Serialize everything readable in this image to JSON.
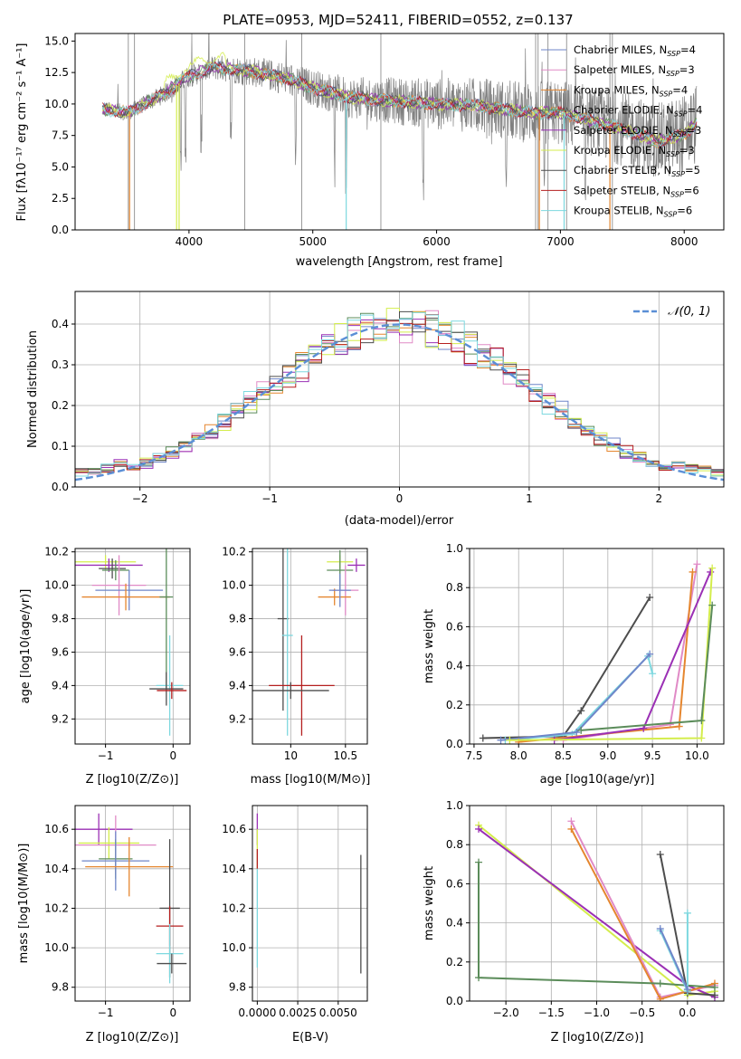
{
  "chart_data": [
    {
      "id": "spectrum",
      "type": "line",
      "title": "PLATE=0953, MJD=52411, FIBERID=0552, z=0.137",
      "xlabel": "wavelength [Angstrom, rest frame]",
      "ylabel": "Flux [fλ10⁻¹⁷ erg cm⁻² s⁻¹ A⁻¹]",
      "xlim": [
        3080,
        8320
      ],
      "ylim": [
        0,
        15.6
      ],
      "xticks": [
        "4000",
        "5000",
        "6000",
        "7000",
        "8000"
      ],
      "yticks": [
        "0.0",
        "2.5",
        "5.0",
        "7.5",
        "10.0",
        "12.5",
        "15.0"
      ],
      "continuum": {
        "x": [
          3300,
          3500,
          3800,
          4000,
          4200,
          4500,
          4800,
          5000,
          5300,
          5600,
          6000,
          6300,
          6600,
          6800,
          7000,
          7200,
          7500,
          7800,
          8000,
          8100
        ],
        "y": [
          9.6,
          9.3,
          10.8,
          12.2,
          12.9,
          12.6,
          12.0,
          11.3,
          10.5,
          10.3,
          10.0,
          9.9,
          9.5,
          9.3,
          9.3,
          8.8,
          8.0,
          7.0,
          7.6,
          8.5
        ]
      },
      "observed_range": [
        3300,
        8100
      ],
      "series_names": [
        "Chabrier MILES, N_SSP=4",
        "Salpeter MILES, N_SSP=3",
        "Kroupa MILES, N_SSP=4",
        "Chabrier ELODIE, N_SSP=4",
        "Salpeter ELODIE, N_SSP=3",
        "Kroupa ELODIE, N_SSP=3",
        "Chabrier STELIB, N_SSP=5",
        "Salpeter STELIB, N_SSP=6",
        "Kroupa STELIB, N_SSP=6"
      ],
      "legend": {
        "placement": "top-right",
        "entries": [
          {
            "base": "Chabrier MILES, N",
            "sub": "SSP",
            "tail": "=4",
            "color": "#6f86c9"
          },
          {
            "base": "Salpeter MILES, N",
            "sub": "SSP",
            "tail": "=3",
            "color": "#e08ac6"
          },
          {
            "base": "Kroupa MILES, N",
            "sub": "SSP",
            "tail": "=4",
            "color": "#e5862f"
          },
          {
            "base": "Chabrier ELODIE, N",
            "sub": "SSP",
            "tail": "=4",
            "color": "#5b8c5a"
          },
          {
            "base": "Salpeter ELODIE, N",
            "sub": "SSP",
            "tail": "=3",
            "color": "#9b30b5"
          },
          {
            "base": "Kroupa ELODIE, N",
            "sub": "SSP",
            "tail": "=3",
            "color": "#d4ed4c"
          },
          {
            "base": "Chabrier STELIB, N",
            "sub": "SSP",
            "tail": "=5",
            "color": "#4d4d4d"
          },
          {
            "base": "Salpeter STELIB, N",
            "sub": "SSP",
            "tail": "=6",
            "color": "#b51f1f"
          },
          {
            "base": "Kroupa STELIB, N",
            "sub": "SSP",
            "tail": "=6",
            "color": "#7dd8df"
          }
        ]
      },
      "grid": false
    },
    {
      "id": "residuals",
      "type": "histogram",
      "xlabel": "(data-model)/error",
      "ylabel": "Normed distribution",
      "xlim": [
        -2.5,
        2.5
      ],
      "ylim": [
        0,
        0.48
      ],
      "xticks": [
        "−2",
        "−1",
        "0",
        "1",
        "2"
      ],
      "yticks": [
        "0.0",
        "0.1",
        "0.2",
        "0.3",
        "0.4"
      ],
      "legend_label": "𝒩(0, 1)",
      "legend_placement": "top-right",
      "bin_width": 0.1,
      "grid": true
    },
    {
      "id": "age-vs-Z",
      "type": "errorbar",
      "xlabel": "Z [log10(Z/Z⊙)]",
      "ylabel": "age  [log10(age/yr)]",
      "xlim": [
        -1.45,
        0.25
      ],
      "ylim": [
        9.05,
        10.22
      ],
      "xticks": [
        -1,
        0
      ],
      "yticks": [
        9.2,
        9.4,
        9.6,
        9.8,
        10.0,
        10.2
      ],
      "grid": true,
      "points": [
        {
          "x": -1.0,
          "y": 10.14,
          "xerr": 0.45,
          "yerr": 0.04,
          "color": "#d4ed4c"
        },
        {
          "x": -0.95,
          "y": 10.12,
          "xerr": 0.5,
          "yerr": 0.04,
          "color": "#9b30b5"
        },
        {
          "x": -0.9,
          "y": 10.1,
          "xerr": 0.2,
          "yerr": 0.06,
          "color": "#4d4d4d"
        },
        {
          "x": -0.85,
          "y": 10.09,
          "xerr": 0.2,
          "yerr": 0.06,
          "color": "#5b8c5a"
        },
        {
          "x": -0.8,
          "y": 10.0,
          "xerr": 0.4,
          "yerr": 0.18,
          "color": "#e08ac6"
        },
        {
          "x": -0.65,
          "y": 9.97,
          "xerr": 0.5,
          "yerr": 0.12,
          "color": "#6f86c9"
        },
        {
          "x": -0.7,
          "y": 9.93,
          "xerr": 0.65,
          "yerr": 0.08,
          "color": "#e5862f"
        },
        {
          "x": -0.1,
          "y": 9.93,
          "xerr": 0.1,
          "yerr": 0.55,
          "color": "#5b8c5a"
        },
        {
          "x": -0.05,
          "y": 9.4,
          "xerr": 0.2,
          "yerr": 0.3,
          "color": "#7dd8df"
        },
        {
          "x": -0.1,
          "y": 9.38,
          "xerr": 0.25,
          "yerr": 0.1,
          "color": "#4d4d4d"
        },
        {
          "x": -0.02,
          "y": 9.37,
          "xerr": 0.22,
          "yerr": 0.05,
          "color": "#b51f1f"
        }
      ]
    },
    {
      "id": "age-vs-mass",
      "type": "errorbar",
      "xlabel": "mass [log10(M/M⊙)]",
      "ylabel": "",
      "xlim": [
        9.65,
        10.7
      ],
      "ylim": [
        9.05,
        10.22
      ],
      "xticks": [
        10.0,
        10.5
      ],
      "yticks": [
        9.2,
        9.4,
        9.6,
        9.8,
        10.0,
        10.2
      ],
      "grid": true,
      "points": [
        {
          "x": 10.45,
          "y": 10.14,
          "xerr": 0.12,
          "yerr": 0.04,
          "color": "#d4ed4c"
        },
        {
          "x": 10.6,
          "y": 10.12,
          "xerr": 0.08,
          "yerr": 0.04,
          "color": "#9b30b5"
        },
        {
          "x": 10.45,
          "y": 10.09,
          "xerr": 0.12,
          "yerr": 0.12,
          "color": "#5b8c5a"
        },
        {
          "x": 10.5,
          "y": 9.97,
          "xerr": 0.12,
          "yerr": 0.15,
          "color": "#e08ac6"
        },
        {
          "x": 10.4,
          "y": 9.93,
          "xerr": 0.15,
          "yerr": 0.05,
          "color": "#e5862f"
        },
        {
          "x": 10.45,
          "y": 9.97,
          "xerr": 0.1,
          "yerr": 0.1,
          "color": "#6f86c9"
        },
        {
          "x": 9.93,
          "y": 9.8,
          "xerr": 0.05,
          "yerr": 0.55,
          "color": "#4d4d4d"
        },
        {
          "x": 9.97,
          "y": 9.7,
          "xerr": 0.05,
          "yerr": 0.6,
          "color": "#7dd8df"
        },
        {
          "x": 10.1,
          "y": 9.4,
          "xerr": 0.3,
          "yerr": 0.3,
          "color": "#b51f1f"
        },
        {
          "x": 10.0,
          "y": 9.37,
          "xerr": 0.35,
          "yerr": 0.05,
          "color": "#4d4d4d"
        }
      ]
    },
    {
      "id": "weight-vs-age",
      "type": "line",
      "xlabel": "age  [log10(age/yr)]",
      "ylabel": "mass weight",
      "xlim": [
        7.45,
        10.3
      ],
      "ylim": [
        0,
        1.0
      ],
      "xticks": [
        "7.5",
        "8.0",
        "8.5",
        "9.0",
        "9.5",
        "10.0"
      ],
      "yticks": [
        "0.0",
        "0.2",
        "0.4",
        "0.6",
        "0.8",
        "1.0"
      ],
      "grid": true,
      "series": [
        {
          "color": "#4d4d4d",
          "x": [
            7.6,
            8.5,
            8.7,
            9.47
          ],
          "y": [
            0.03,
            0.04,
            0.17,
            0.75
          ]
        },
        {
          "color": "#7dd8df",
          "x": [
            7.85,
            8.6,
            9.45,
            9.5
          ],
          "y": [
            0.02,
            0.05,
            0.45,
            0.36
          ]
        },
        {
          "color": "#6f86c9",
          "x": [
            7.8,
            8.65,
            9.47
          ],
          "y": [
            0.02,
            0.06,
            0.46
          ]
        },
        {
          "color": "#e08ac6",
          "x": [
            8.5,
            9.7,
            10.0
          ],
          "y": [
            0.02,
            0.1,
            0.92
          ]
        },
        {
          "color": "#e5862f",
          "x": [
            8.0,
            9.8,
            9.95
          ],
          "y": [
            0.01,
            0.09,
            0.88
          ]
        },
        {
          "color": "#9b30b5",
          "x": [
            8.4,
            9.4,
            10.15
          ],
          "y": [
            0.02,
            0.08,
            0.88
          ]
        },
        {
          "color": "#d4ed4c",
          "x": [
            7.9,
            10.05,
            10.17
          ],
          "y": [
            0.02,
            0.03,
            0.9
          ]
        },
        {
          "color": "#5b8c5a",
          "x": [
            8.7,
            10.05,
            10.17
          ],
          "y": [
            0.07,
            0.12,
            0.71
          ]
        }
      ]
    },
    {
      "id": "mass-vs-Z",
      "type": "errorbar",
      "xlabel": "Z [log10(Z/Z⊙)]",
      "ylabel": "mass [log10(M/M⊙)]",
      "xlim": [
        -1.45,
        0.25
      ],
      "ylim": [
        9.73,
        10.72
      ],
      "xticks": [
        -1,
        0
      ],
      "yticks": [
        9.8,
        10.0,
        10.2,
        10.4,
        10.6
      ],
      "grid": true,
      "points": [
        {
          "x": -1.1,
          "y": 10.6,
          "xerr": 0.5,
          "yerr": 0.08,
          "color": "#9b30b5"
        },
        {
          "x": -0.95,
          "y": 10.53,
          "xerr": 0.45,
          "yerr": 0.08,
          "color": "#d4ed4c"
        },
        {
          "x": -0.85,
          "y": 10.52,
          "xerr": 0.6,
          "yerr": 0.15,
          "color": "#e08ac6"
        },
        {
          "x": -0.85,
          "y": 10.45,
          "xerr": 0.25,
          "yerr": 0.1,
          "color": "#5b8c5a"
        },
        {
          "x": -0.85,
          "y": 10.44,
          "xerr": 0.5,
          "yerr": 0.15,
          "color": "#6f86c9"
        },
        {
          "x": -0.65,
          "y": 10.41,
          "xerr": 0.65,
          "yerr": 0.15,
          "color": "#e5862f"
        },
        {
          "x": -0.05,
          "y": 10.2,
          "xerr": 0.15,
          "yerr": 0.35,
          "color": "#4d4d4d"
        },
        {
          "x": -0.05,
          "y": 10.11,
          "xerr": 0.2,
          "yerr": 0.1,
          "color": "#b51f1f"
        },
        {
          "x": -0.05,
          "y": 9.97,
          "xerr": 0.2,
          "yerr": 0.15,
          "color": "#7dd8df"
        },
        {
          "x": -0.02,
          "y": 9.92,
          "xerr": 0.22,
          "yerr": 0.05,
          "color": "#4d4d4d"
        }
      ]
    },
    {
      "id": "mass-vs-ebv",
      "type": "errorbar",
      "xlabel": "E(B-V)",
      "ylabel": "",
      "xlim": [
        -0.0003,
        0.0068
      ],
      "ylim": [
        9.73,
        10.72
      ],
      "xticks": [
        "0.0000",
        "0.0025",
        "0.0050"
      ],
      "yticks": [
        9.8,
        10.0,
        10.2,
        10.4,
        10.6
      ],
      "grid": true,
      "points": [
        {
          "x": 0.0,
          "y": 10.6,
          "xerr": 0,
          "yerr": 0.08,
          "color": "#9b30b5"
        },
        {
          "x": 0.0,
          "y": 10.5,
          "xerr": 0,
          "yerr": 0.1,
          "color": "#d4ed4c"
        },
        {
          "x": 0.0,
          "y": 10.45,
          "xerr": 0,
          "yerr": 0.05,
          "color": "#b51f1f"
        },
        {
          "x": 0.0,
          "y": 10.15,
          "xerr": 0,
          "yerr": 0.25,
          "color": "#7dd8df"
        },
        {
          "x": 0.0064,
          "y": 10.17,
          "xerr": 0,
          "yerr": 0.3,
          "color": "#4d4d4d"
        }
      ]
    },
    {
      "id": "weight-vs-Z",
      "type": "line",
      "xlabel": "Z [log10(Z/Z⊙)]",
      "ylabel": "mass weight",
      "xlim": [
        -2.4,
        0.4
      ],
      "ylim": [
        0,
        1.0
      ],
      "xticks": [
        "−2.0",
        "−1.5",
        "−1.0",
        "−0.5",
        "0.0"
      ],
      "yticks": [
        "0.0",
        "0.2",
        "0.4",
        "0.6",
        "0.8",
        "1.0"
      ],
      "grid": true,
      "series": [
        {
          "color": "#d4ed4c",
          "x": [
            -2.3,
            0.0,
            0.3
          ],
          "y": [
            0.9,
            0.03,
            0.05
          ]
        },
        {
          "color": "#9b30b5",
          "x": [
            -2.3,
            0.0,
            0.3
          ],
          "y": [
            0.88,
            0.08,
            0.02
          ]
        },
        {
          "color": "#e08ac6",
          "x": [
            -1.28,
            -0.3,
            0.3
          ],
          "y": [
            0.92,
            0.02,
            0.08
          ]
        },
        {
          "color": "#e5862f",
          "x": [
            -1.28,
            -0.3,
            0.3
          ],
          "y": [
            0.88,
            0.01,
            0.09
          ]
        },
        {
          "color": "#5b8c5a",
          "x": [
            -2.3,
            -2.3,
            -0.3,
            0.3
          ],
          "y": [
            0.71,
            0.12,
            0.09,
            0.07
          ]
        },
        {
          "color": "#4d4d4d",
          "x": [
            -0.3,
            0.0,
            0.3
          ],
          "y": [
            0.75,
            0.04,
            0.03
          ]
        },
        {
          "color": "#7dd8df",
          "x": [
            -0.3,
            0.0,
            0.0
          ],
          "y": [
            0.36,
            0.05,
            0.45
          ]
        },
        {
          "color": "#6f86c9",
          "x": [
            -0.3,
            0.0
          ],
          "y": [
            0.37,
            0.06
          ]
        }
      ]
    }
  ]
}
